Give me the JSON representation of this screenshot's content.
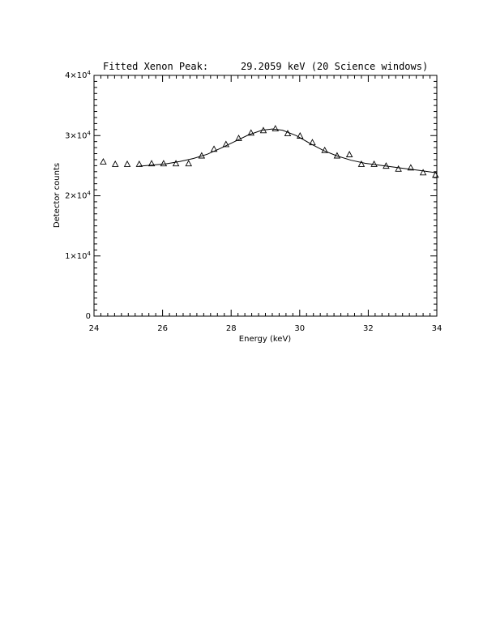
{
  "chart_data": {
    "type": "scatter",
    "title_left": "Fitted Xenon Peak:",
    "title_right": "29.2059 keV (20 Science windows)",
    "xlabel": "Energy (keV)",
    "ylabel": "Detector counts",
    "xlim": [
      24,
      34
    ],
    "ylim": [
      0,
      40000
    ],
    "x_ticks": [
      24,
      26,
      28,
      30,
      32,
      34
    ],
    "x_tick_labels": [
      "24",
      "26",
      "28",
      "30",
      "32",
      "34"
    ],
    "y_ticks": [
      0,
      10000,
      20000,
      30000,
      40000
    ],
    "y_tick_labels": [
      {
        "mantissa": "0",
        "exp": ""
      },
      {
        "mantissa": "1×10",
        "exp": "4"
      },
      {
        "mantissa": "2×10",
        "exp": "4"
      },
      {
        "mantissa": "3×10",
        "exp": "4"
      },
      {
        "mantissa": "4×10",
        "exp": "4"
      }
    ],
    "grid": false,
    "series": [
      {
        "marker": "triangle",
        "x": [
          24.27,
          24.62,
          24.97,
          25.32,
          25.68,
          26.03,
          26.39,
          26.76,
          27.14,
          27.5,
          27.85,
          28.22,
          28.58,
          28.94,
          29.29,
          29.65,
          30.01,
          30.37,
          30.73,
          31.09,
          31.45,
          31.8,
          32.17,
          32.52,
          32.88,
          33.24,
          33.6,
          33.96
        ],
        "y": [
          25600,
          25200,
          25200,
          25200,
          25300,
          25300,
          25300,
          25300,
          26600,
          27700,
          28500,
          29500,
          30400,
          30800,
          31100,
          30300,
          29900,
          28800,
          27500,
          26600,
          26800,
          25200,
          25200,
          24900,
          24400,
          24600,
          23800,
          23400
        ]
      },
      {
        "type": "line",
        "x": [
          25.3,
          25.7,
          26.1,
          26.5,
          26.9,
          27.3,
          27.7,
          28.1,
          28.5,
          28.9,
          29.2,
          29.5,
          29.9,
          30.3,
          30.7,
          31.1,
          31.5,
          31.9,
          32.3,
          32.7,
          33.1,
          33.5,
          34.0
        ],
        "y": [
          24900,
          25100,
          25300,
          25700,
          26200,
          26900,
          27900,
          29000,
          30100,
          30900,
          31100,
          30900,
          30000,
          28700,
          27500,
          26600,
          25900,
          25400,
          25100,
          24800,
          24500,
          24200,
          23800
        ]
      }
    ]
  }
}
